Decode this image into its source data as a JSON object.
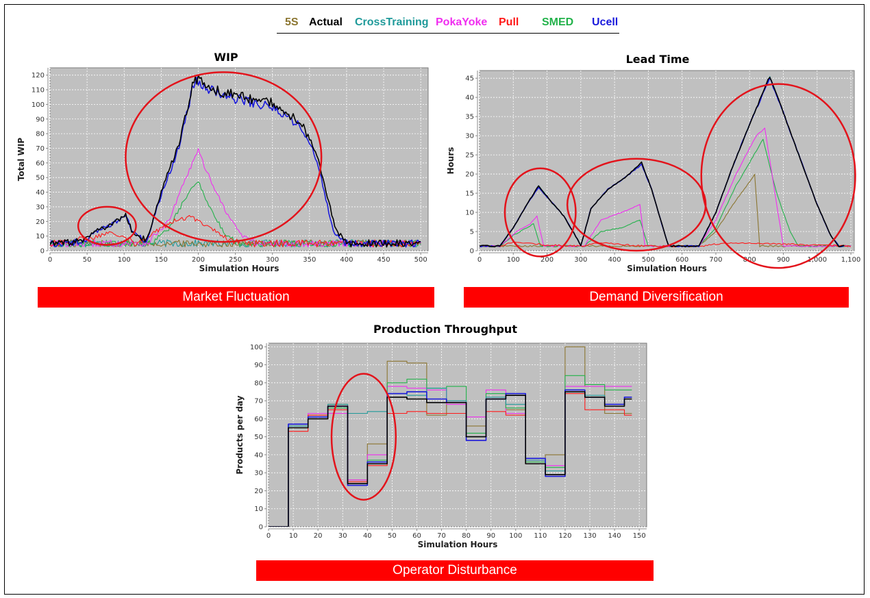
{
  "legend": [
    {
      "name": "5S",
      "color": "#8b7530"
    },
    {
      "name": "Actual",
      "color": "#000000"
    },
    {
      "name": "CrossTraining",
      "color": "#1f9a9a"
    },
    {
      "name": "PokaYoke",
      "color": "#f02ef0"
    },
    {
      "name": "Pull",
      "color": "#ff1a1a"
    },
    {
      "name": "SMED",
      "color": "#22b24a"
    },
    {
      "name": "Ucell",
      "color": "#1a1adc"
    }
  ],
  "banners": {
    "wip": "Market Fluctuation",
    "lead": "Demand Diversification",
    "throughput": "Operator Disturbance"
  },
  "chart_data": [
    {
      "id": "wip",
      "type": "line",
      "title": "WIP",
      "xlabel": "Simulation Hours",
      "ylabel": "Total WIP",
      "xlim": [
        0,
        510
      ],
      "ylim": [
        0,
        125
      ],
      "xticks": [
        0,
        50,
        100,
        150,
        200,
        250,
        300,
        350,
        400,
        450,
        500
      ],
      "xtick_labels": [
        "0",
        "50",
        "100",
        "150",
        "200",
        "250",
        "300",
        "350",
        "400",
        "450",
        "500"
      ],
      "yticks": [
        0,
        10,
        20,
        30,
        40,
        50,
        60,
        70,
        80,
        90,
        100,
        110,
        120
      ],
      "ytick_labels": [
        "0",
        "10",
        "20",
        "30",
        "40",
        "50",
        "60",
        "70",
        "80",
        "90",
        "100",
        "110",
        "120"
      ],
      "grid": true,
      "noise": {
        "baseline": 5,
        "amp": 2.5,
        "step": 2
      },
      "annotations": [
        {
          "shape": "ellipse",
          "cx": 77,
          "cy": 17,
          "rx": 39,
          "ry": 13
        },
        {
          "shape": "ellipse",
          "cx": 234,
          "cy": 64,
          "rx": 132,
          "ry": 58
        }
      ],
      "series": [
        {
          "name": "5S",
          "color": "#8b7530",
          "x": [
            0,
            500
          ],
          "y": [
            5,
            5
          ]
        },
        {
          "name": "Actual",
          "color": "#000000",
          "x": [
            0,
            45,
            60,
            80,
            95,
            102,
            110,
            130,
            150,
            175,
            195,
            210,
            250,
            300,
            340,
            360,
            385,
            400,
            500
          ],
          "y": [
            5,
            6,
            13,
            17,
            22,
            25,
            14,
            6,
            40,
            75,
            119,
            112,
            106,
            101,
            87,
            65,
            15,
            5,
            5
          ]
        },
        {
          "name": "CrossTraining",
          "color": "#1f9a9a",
          "x": [
            0,
            500
          ],
          "y": [
            5,
            5
          ]
        },
        {
          "name": "PokaYoke",
          "color": "#f02ef0",
          "x": [
            0,
            130,
            160,
            185,
            200,
            215,
            240,
            260,
            280,
            500
          ],
          "y": [
            5,
            5,
            20,
            52,
            68,
            50,
            24,
            10,
            5,
            5
          ]
        },
        {
          "name": "Pull",
          "color": "#ff1a1a",
          "x": [
            0,
            55,
            80,
            100,
            115,
            140,
            165,
            190,
            210,
            240,
            270,
            500
          ],
          "y": [
            5,
            8,
            13,
            10,
            5,
            12,
            20,
            23,
            18,
            8,
            5,
            5
          ]
        },
        {
          "name": "SMED",
          "color": "#22b24a",
          "x": [
            0,
            135,
            160,
            185,
            200,
            215,
            235,
            255,
            500
          ],
          "y": [
            5,
            5,
            15,
            38,
            48,
            30,
            12,
            5,
            5
          ]
        },
        {
          "name": "Ucell",
          "color": "#1a1adc",
          "x": [
            0,
            45,
            60,
            80,
            95,
            102,
            110,
            130,
            150,
            175,
            195,
            210,
            250,
            300,
            340,
            360,
            382,
            398,
            500
          ],
          "y": [
            5,
            6,
            13,
            17,
            22,
            25,
            14,
            6,
            38,
            72,
            117,
            111,
            104,
            98,
            84,
            62,
            14,
            5,
            5
          ]
        }
      ]
    },
    {
      "id": "lead",
      "type": "line",
      "title": "Lead Time",
      "xlabel": "Simulation Hours",
      "ylabel": "Hours",
      "xlim": [
        0,
        1110
      ],
      "ylim": [
        0,
        47
      ],
      "xticks": [
        0,
        100,
        200,
        300,
        400,
        500,
        600,
        700,
        800,
        900,
        1000,
        1100
      ],
      "xtick_labels": [
        "0",
        "100",
        "200",
        "300",
        "400",
        "500",
        "600",
        "700",
        "800",
        "900",
        "1,000",
        "1,100"
      ],
      "yticks": [
        0,
        5,
        10,
        15,
        20,
        25,
        30,
        35,
        40,
        45
      ],
      "ytick_labels": [
        "0",
        "5",
        "10",
        "15",
        "20",
        "25",
        "30",
        "35",
        "40",
        "45"
      ],
      "grid": true,
      "noise": {
        "baseline": 1.2,
        "amp": 0.2,
        "step": 5
      },
      "annotations": [
        {
          "shape": "ellipse",
          "cx": 180,
          "cy": 10,
          "rx": 105,
          "ry": 11.5
        },
        {
          "shape": "ellipse",
          "cx": 465,
          "cy": 12,
          "rx": 205,
          "ry": 12
        },
        {
          "shape": "ellipse",
          "cx": 885,
          "cy": 19.5,
          "rx": 228,
          "ry": 24
        }
      ],
      "series": [
        {
          "name": "5S",
          "color": "#8b7530",
          "x": [
            0,
            650,
            700,
            750,
            800,
            815,
            830,
            1100
          ],
          "y": [
            1.2,
            1.2,
            5,
            12,
            18,
            20,
            1.2,
            1.2
          ]
        },
        {
          "name": "Actual",
          "color": "#000000",
          "x": [
            0,
            60,
            100,
            140,
            175,
            210,
            250,
            290,
            300,
            330,
            380,
            430,
            480,
            510,
            540,
            560,
            650,
            700,
            750,
            800,
            860,
            900,
            950,
            1000,
            1040,
            1065,
            1080
          ],
          "y": [
            1.2,
            1.2,
            6,
            12,
            17,
            13,
            9,
            3,
            1.2,
            11,
            16,
            19,
            23,
            16,
            7,
            1.2,
            1.2,
            10,
            22,
            33,
            45.5,
            36,
            24,
            12,
            4,
            1.2,
            1.2
          ]
        },
        {
          "name": "CrossTraining",
          "color": "#1f9a9a",
          "x": [
            0,
            60,
            100,
            140,
            175,
            210,
            250,
            290,
            300,
            330,
            380,
            430,
            480,
            510,
            540,
            560,
            650,
            700,
            750,
            800,
            860,
            900,
            950,
            1000,
            1040,
            1065,
            1080
          ],
          "y": [
            1.2,
            1.2,
            6,
            12,
            17,
            13,
            9,
            3,
            1.2,
            11,
            16,
            19,
            23,
            16,
            7,
            1.2,
            1.2,
            10,
            22,
            33,
            45.5,
            36,
            24,
            12,
            4,
            1.2,
            1.2
          ]
        },
        {
          "name": "PokaYoke",
          "color": "#f02ef0",
          "x": [
            0,
            60,
            110,
            150,
            170,
            190,
            310,
            360,
            420,
            475,
            490,
            650,
            700,
            760,
            820,
            845,
            875,
            900,
            1100
          ],
          "y": [
            1.2,
            1.2,
            5,
            7,
            9,
            1.2,
            1.2,
            8,
            10,
            12,
            1.2,
            1.2,
            8,
            20,
            30,
            32,
            15,
            1.2,
            1.2
          ]
        },
        {
          "name": "Pull",
          "color": "#ff1a1a",
          "x": [
            0,
            60,
            100,
            150,
            190,
            300,
            340,
            380,
            430,
            500,
            660,
            720,
            800,
            1100
          ],
          "y": [
            1.2,
            1.2,
            2.2,
            2.0,
            1.5,
            1.2,
            2.0,
            2.0,
            1.5,
            1.2,
            1.2,
            2.0,
            2.0,
            1.2
          ]
        },
        {
          "name": "SMED",
          "color": "#22b24a",
          "x": [
            0,
            60,
            100,
            140,
            160,
            180,
            310,
            360,
            420,
            475,
            500,
            650,
            700,
            760,
            820,
            840,
            880,
            920,
            945,
            1100
          ],
          "y": [
            1.2,
            1.2,
            4,
            6,
            7,
            1.2,
            1.2,
            5,
            6,
            8,
            1.2,
            1.2,
            6,
            17,
            26,
            29,
            15,
            5,
            1.2,
            1.2
          ]
        },
        {
          "name": "Ucell",
          "color": "#1a1adc",
          "x": [
            0,
            60,
            100,
            140,
            175,
            210,
            250,
            290,
            300,
            330,
            380,
            430,
            480,
            510,
            540,
            560,
            650,
            700,
            750,
            800,
            860,
            900,
            950,
            1000,
            1040,
            1065,
            1080
          ],
          "y": [
            1.2,
            1.2,
            6,
            12,
            16.5,
            13,
            9,
            3,
            1.2,
            11,
            16,
            19,
            22.5,
            16,
            7,
            1.2,
            1.2,
            10,
            22,
            33,
            45,
            36,
            24,
            12,
            4,
            1.2,
            1.2
          ]
        }
      ]
    },
    {
      "id": "throughput",
      "type": "line",
      "step": true,
      "title": "Production Throughput",
      "xlabel": "Simulation Hours",
      "ylabel": "Products per day",
      "xlim": [
        0,
        153
      ],
      "ylim": [
        0,
        102
      ],
      "xticks": [
        0,
        10,
        20,
        30,
        40,
        50,
        60,
        70,
        80,
        90,
        100,
        110,
        120,
        130,
        140,
        150
      ],
      "xtick_labels": [
        "0",
        "10",
        "20",
        "30",
        "40",
        "50",
        "60",
        "70",
        "80",
        "90",
        "100",
        "110",
        "120",
        "130",
        "140",
        "150"
      ],
      "yticks": [
        0,
        10,
        20,
        30,
        40,
        50,
        60,
        70,
        80,
        90,
        100
      ],
      "ytick_labels": [
        "0",
        "10",
        "20",
        "30",
        "40",
        "50",
        "60",
        "70",
        "80",
        "90",
        "100"
      ],
      "grid": true,
      "annotations": [
        {
          "shape": "ellipse",
          "cx": 38.5,
          "cy": 50,
          "rx": 13,
          "ry": 35
        }
      ],
      "x_breaks": [
        0,
        8,
        16,
        24,
        32,
        40,
        48,
        56,
        64,
        72,
        80,
        88,
        96,
        104,
        112,
        120,
        128,
        136,
        144,
        147
      ],
      "series": [
        {
          "name": "5S",
          "color": "#8b7530",
          "y": [
            0,
            55,
            62,
            68,
            26,
            46,
            92,
            91,
            62,
            69,
            56,
            71,
            65,
            35,
            40,
            100,
            78,
            63,
            63
          ]
        },
        {
          "name": "Actual",
          "color": "#000000",
          "y": [
            0,
            55,
            60,
            67,
            24,
            35,
            72,
            71,
            69,
            69,
            50,
            71,
            73,
            35,
            29,
            75,
            72,
            67,
            71
          ]
        },
        {
          "name": "CrossTraining",
          "color": "#1f9a9a",
          "y": [
            0,
            56,
            61,
            68,
            63,
            64,
            74,
            73,
            77,
            70,
            50,
            72,
            68,
            37,
            31,
            76,
            73,
            68,
            72
          ]
        },
        {
          "name": "PokaYoke",
          "color": "#f02ef0",
          "y": [
            0,
            56,
            63,
            63,
            26,
            40,
            78,
            77,
            76,
            68,
            61,
            76,
            63,
            37,
            34,
            78,
            78,
            78,
            78
          ]
        },
        {
          "name": "Pull",
          "color": "#ff1a1a",
          "y": [
            0,
            53,
            62,
            65,
            25,
            34,
            63,
            64,
            63,
            63,
            48,
            64,
            62,
            35,
            28,
            74,
            65,
            65,
            62
          ]
        },
        {
          "name": "SMED",
          "color": "#22b24a",
          "y": [
            0,
            56,
            61,
            66,
            24,
            37,
            80,
            82,
            77,
            78,
            52,
            74,
            66,
            36,
            33,
            84,
            79,
            76,
            76
          ]
        },
        {
          "name": "Ucell",
          "color": "#1a1adc",
          "y": [
            0,
            57,
            61,
            67,
            23,
            36,
            74,
            75,
            71,
            69,
            48,
            71,
            74,
            38,
            28,
            76,
            72,
            68,
            72
          ]
        }
      ]
    }
  ]
}
